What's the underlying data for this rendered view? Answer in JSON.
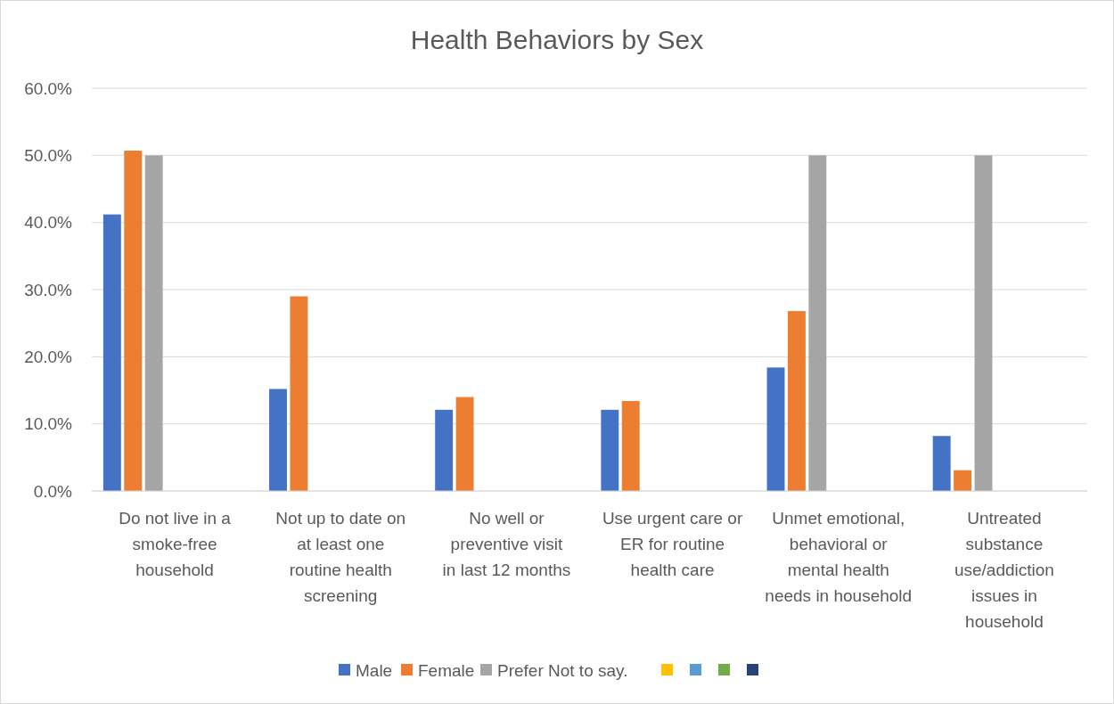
{
  "chart_data": {
    "type": "bar",
    "title": "Health Behaviors by Sex",
    "categories": [
      "Do not live in a smoke-free household",
      "Not up to date on at least one routine health screening",
      "No well or preventive visit in last 12 months",
      "Use urgent care or ER for routine health care",
      "Unmet emotional, behavioral or mental health needs in household",
      "Untreated substance use/addiction issues in household"
    ],
    "series": [
      {
        "name": "Male",
        "color": "#4472c4",
        "values": [
          41.2,
          15.2,
          12.1,
          12.1,
          18.4,
          8.2
        ]
      },
      {
        "name": "Female",
        "color": "#ed7d31",
        "values": [
          50.7,
          29.0,
          14.0,
          13.4,
          26.8,
          3.1
        ]
      },
      {
        "name": "Prefer Not to say.",
        "color": "#a5a5a5",
        "values": [
          50,
          0,
          0,
          0,
          50,
          50
        ]
      },
      {
        "color": "#ffc000",
        "values": [
          null,
          null,
          null,
          null,
          null,
          null
        ]
      },
      {
        "color": "#5b9bd5",
        "values": [
          null,
          null,
          null,
          null,
          null,
          null
        ]
      },
      {
        "color": "#70ad47",
        "values": [
          null,
          null,
          null,
          null,
          null,
          null
        ]
      },
      {
        "color": "#264478",
        "values": [
          null,
          null,
          null,
          null,
          null,
          null
        ]
      }
    ],
    "ylim": [
      0,
      60
    ],
    "yticks": [
      {
        "value": 0,
        "label": "0.0%"
      },
      {
        "value": 10,
        "label": "10.0%"
      },
      {
        "value": 20,
        "label": "20.0%"
      },
      {
        "value": 30,
        "label": "30.0%"
      },
      {
        "value": 40,
        "label": "40.0%"
      },
      {
        "value": 50,
        "label": "50.0%"
      },
      {
        "value": 60,
        "label": "60.0%"
      }
    ],
    "grid": "y",
    "legend": "bottom"
  }
}
